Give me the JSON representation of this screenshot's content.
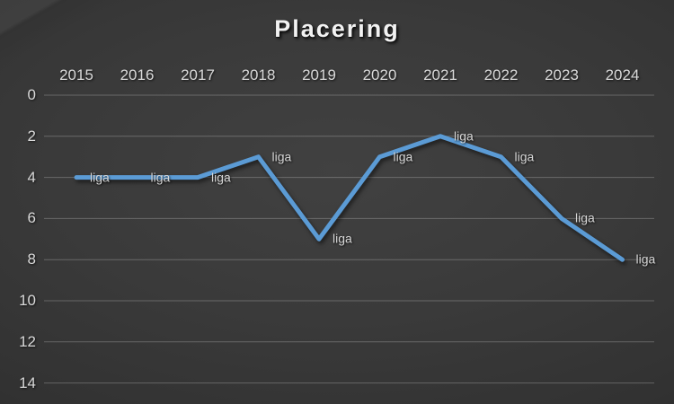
{
  "chart_data": {
    "type": "line",
    "title": "Placering",
    "categories": [
      "2015",
      "2016",
      "2017",
      "2018",
      "2019",
      "2020",
      "2021",
      "2022",
      "2023",
      "2024"
    ],
    "series": [
      {
        "name": "liga",
        "values": [
          4,
          4,
          4,
          3,
          7,
          3,
          2,
          3,
          6,
          8
        ]
      }
    ],
    "point_labels": [
      "liga",
      "liga",
      "liga",
      "liga",
      "liga",
      "liga",
      "liga",
      "liga",
      "liga",
      "liga"
    ],
    "x_axis": {
      "position": "top",
      "tick_labels": [
        "2015",
        "2016",
        "2017",
        "2018",
        "2019",
        "2020",
        "2021",
        "2022",
        "2023",
        "2024"
      ]
    },
    "y_axis": {
      "min": 0,
      "max": 14,
      "step": 2,
      "direction": "reversed",
      "tick_labels": [
        "0",
        "2",
        "4",
        "6",
        "8",
        "10",
        "12",
        "14"
      ]
    },
    "grid": "horizontal",
    "legend": "none",
    "colors": {
      "line": "#5B9BD5",
      "gridline": "rgba(255,255,255,0.24)",
      "axis_text": "#d9d9d9",
      "data_label_text": "#d6d6d6",
      "title_text": "#f2f2f2",
      "background_center": "#3a3a3a",
      "background_edge": "#1b1b1b"
    }
  }
}
